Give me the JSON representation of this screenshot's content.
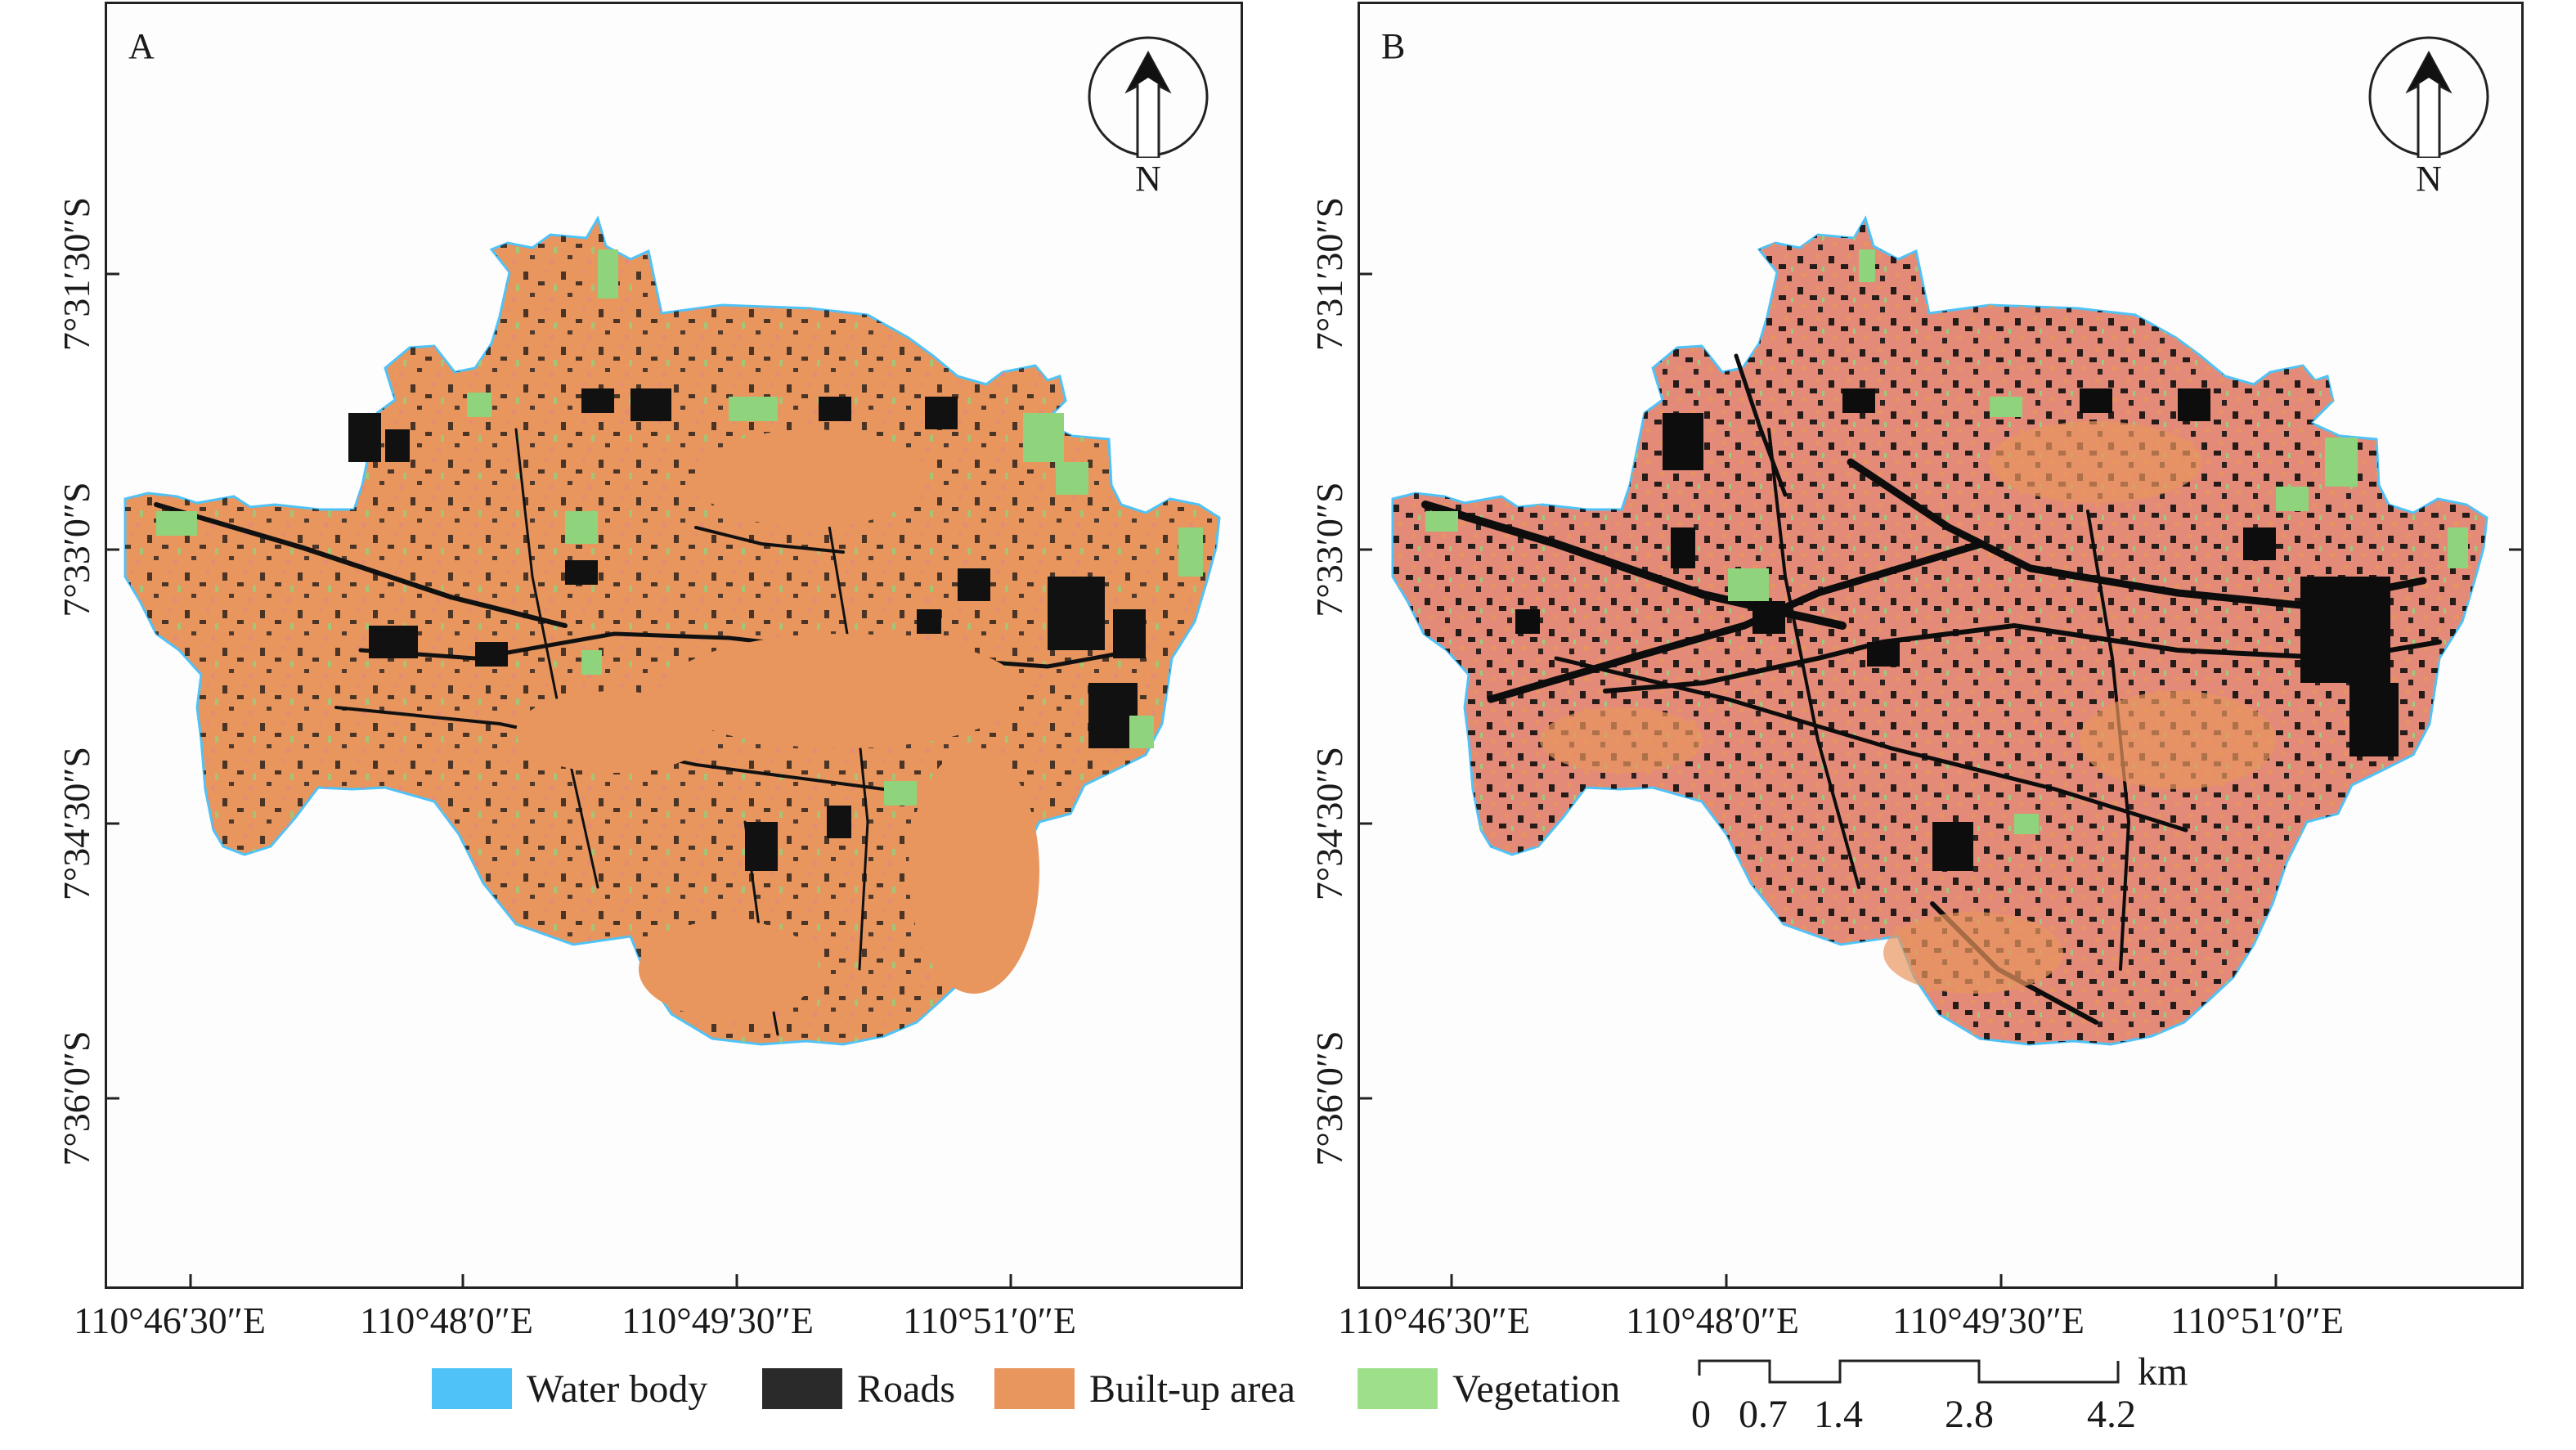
{
  "panels": [
    {
      "letter": "A"
    },
    {
      "letter": "B"
    }
  ],
  "north_arrow": {
    "label": "N"
  },
  "x_ticks": [
    "110°46′30″E",
    "110°48′0″E",
    "110°49′30″E",
    "110°51′0″E"
  ],
  "y_ticks": [
    "7°31′30″S",
    "7°33′0″S",
    "7°34′30″S",
    "7°36′0″S"
  ],
  "legend": [
    {
      "label": "Water body",
      "color": "#4fc3f7"
    },
    {
      "label": "Roads",
      "color": "#2a2a2a"
    },
    {
      "label": "Built-up area",
      "color": "#e8955e"
    },
    {
      "label": "Vegetation",
      "color": "#9ee08a"
    }
  ],
  "scale_bar": {
    "values": [
      "0",
      "0.7",
      "1.4",
      "2.8",
      "4.2"
    ],
    "unit": "km"
  },
  "colors": {
    "built_up_main": "#e8955e",
    "built_up_pink": "#e48a78",
    "roads": "#0d0d0d",
    "vegetation": "#8fd47c",
    "water": "#4fc3f7"
  }
}
